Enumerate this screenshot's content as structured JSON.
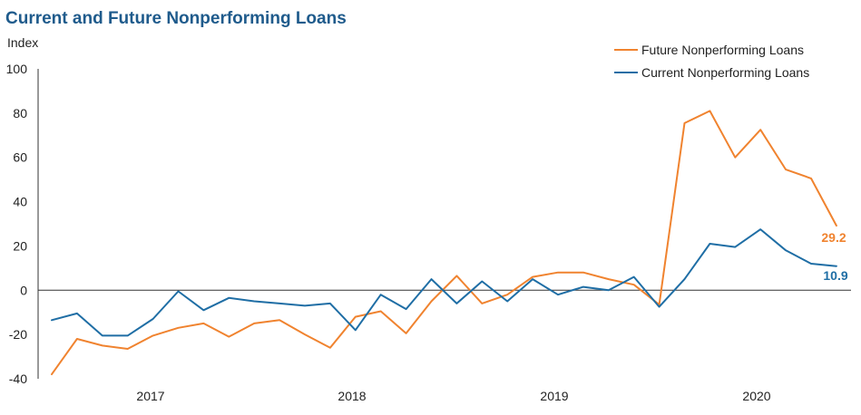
{
  "chart_data": {
    "type": "line",
    "title": "Current and Future Nonperforming Loans",
    "ylabel": "Index",
    "xlabel": "",
    "ylim": [
      -40,
      100
    ],
    "yticks": [
      -40,
      -20,
      0,
      20,
      40,
      60,
      80,
      100
    ],
    "year_labels": [
      "2017",
      "2018",
      "2019",
      "2020"
    ],
    "grid": false,
    "legend_position": "top-right",
    "series": [
      {
        "name": "Future Nonperforming Loans",
        "color": "#f0832f",
        "end_label": "29.2",
        "values": [
          -38,
          -22,
          -25,
          -26.5,
          -20.5,
          -17,
          -15,
          -21,
          -15,
          -13.5,
          -20,
          -26,
          -12,
          -9.5,
          -19.5,
          -5,
          6.5,
          -6,
          -2,
          6,
          8,
          8,
          5,
          2.5,
          -6.5,
          75.5,
          81,
          60,
          72.5,
          54.5,
          50.5,
          29.2
        ]
      },
      {
        "name": "Current Nonperforming Loans",
        "color": "#1f6ea5",
        "end_label": "10.9",
        "values": [
          -13.5,
          -10.5,
          -20.5,
          -20.5,
          -13,
          -0.5,
          -9,
          -3.5,
          -5,
          -6,
          -7,
          -6,
          -18,
          -2,
          -8.5,
          5,
          -6,
          4,
          -5,
          5,
          -2,
          1.5,
          0,
          6,
          -7.5,
          5,
          21,
          19.5,
          27.5,
          18,
          12,
          10.9
        ]
      }
    ]
  }
}
